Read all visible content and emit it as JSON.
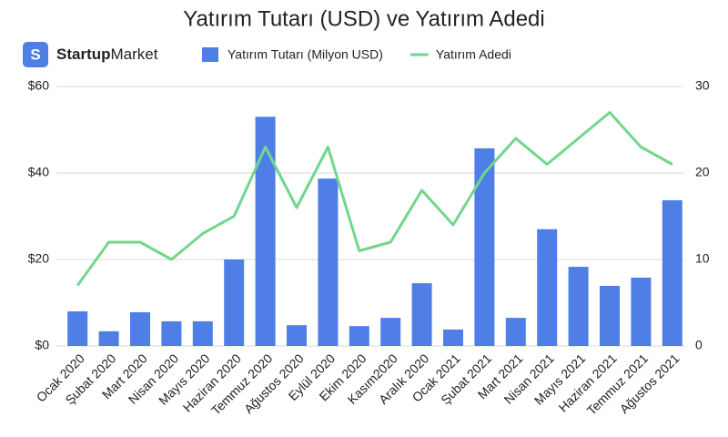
{
  "logo": {
    "icon": "S",
    "brand_bold": "Startup",
    "brand_regular": "Market"
  },
  "chart_data": {
    "type": "combo",
    "title": "Yatırım Tutarı (USD) ve Yatırım Adedi",
    "categories": [
      "Ocak 2020",
      "Şubat 2020",
      "Mart 2020",
      "Nisan 2020",
      "Mayıs 2020",
      "Haziran 2020",
      "Temmuz 2020",
      "Ağustos 2020",
      "Eylül 2020",
      "Ekim 2020",
      "Kasım2020",
      "Aralık 2020",
      "Ocak 2021",
      "Şubat 2021",
      "Mart 2021",
      "Nisan 2021",
      "Mayıs 2021",
      "Haziran 2021",
      "Temmuz 2021",
      "Ağustos 2021"
    ],
    "series": [
      {
        "name": "Yatırım Tutarı (Milyon USD)",
        "type": "bar",
        "color": "#4f7fe6",
        "values": [
          8.0,
          3.4,
          7.8,
          5.7,
          5.7,
          20,
          53,
          4.8,
          38.7,
          4.6,
          6.5,
          14.5,
          3.8,
          45.7,
          6.5,
          27,
          18.3,
          13.9,
          15.8,
          33.7
        ]
      },
      {
        "name": "Yatırım Adedi",
        "type": "line",
        "axis": "y2",
        "color": "#72d68b",
        "values": [
          7,
          12,
          12,
          10,
          13,
          15,
          23,
          16,
          23,
          11,
          12,
          18,
          14,
          20,
          24,
          21,
          24,
          27,
          23,
          21
        ]
      }
    ],
    "ylim": [
      0,
      60
    ],
    "yticks": [
      {
        "value": 0,
        "label": "$0"
      },
      {
        "value": 20,
        "label": "$20"
      },
      {
        "value": 40,
        "label": "$40"
      },
      {
        "value": 60,
        "label": "$60"
      }
    ],
    "y2lim": [
      0,
      30
    ],
    "y2ticks": [
      0,
      10,
      20,
      30
    ],
    "grid": true
  }
}
